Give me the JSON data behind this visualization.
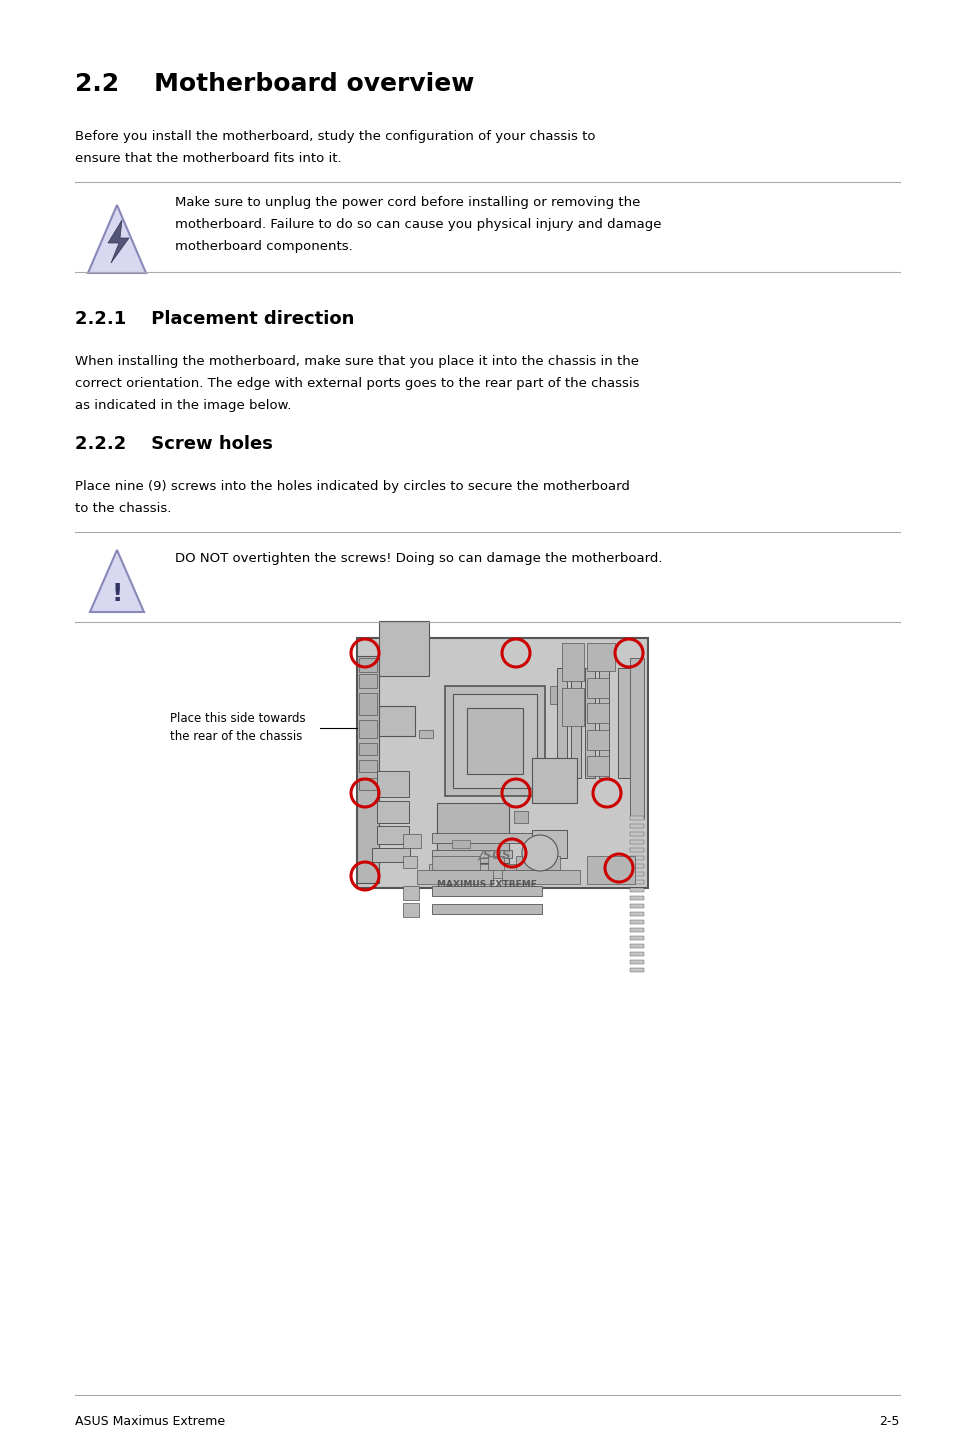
{
  "title": "2.2    Motherboard overview",
  "bg_color": "#ffffff",
  "section_221": "2.2.1    Placement direction",
  "section_222": "2.2.2    Screw holes",
  "para1_line1": "Before you install the motherboard, study the configuration of your chassis to",
  "para1_line2": "ensure that the motherboard fits into it.",
  "warning1_line1": "Make sure to unplug the power cord before installing or removing the",
  "warning1_line2": "motherboard. Failure to do so can cause you physical injury and damage",
  "warning1_line3": "motherboard components.",
  "para221_line1": "When installing the motherboard, make sure that you place it into the chassis in the",
  "para221_line2": "correct orientation. The edge with external ports goes to the rear part of the chassis",
  "para221_line3": "as indicated in the image below.",
  "para222_line1": "Place nine (9) screws into the holes indicated by circles to secure the motherboard",
  "para222_line2": "to the chassis.",
  "warning2": "DO NOT overtighten the screws! Doing so can damage the motherboard.",
  "placement_label": "Place this side towards\nthe rear of the chassis",
  "footer_left": "ASUS Maximus Extreme",
  "footer_right": "2-5",
  "screw_color": "#cc0000",
  "mb_gray": "#c8c8c8",
  "mb_mid": "#aaaaaa",
  "mb_dark": "#888888",
  "line_color": "#aaaaaa",
  "border_color": "#555555"
}
